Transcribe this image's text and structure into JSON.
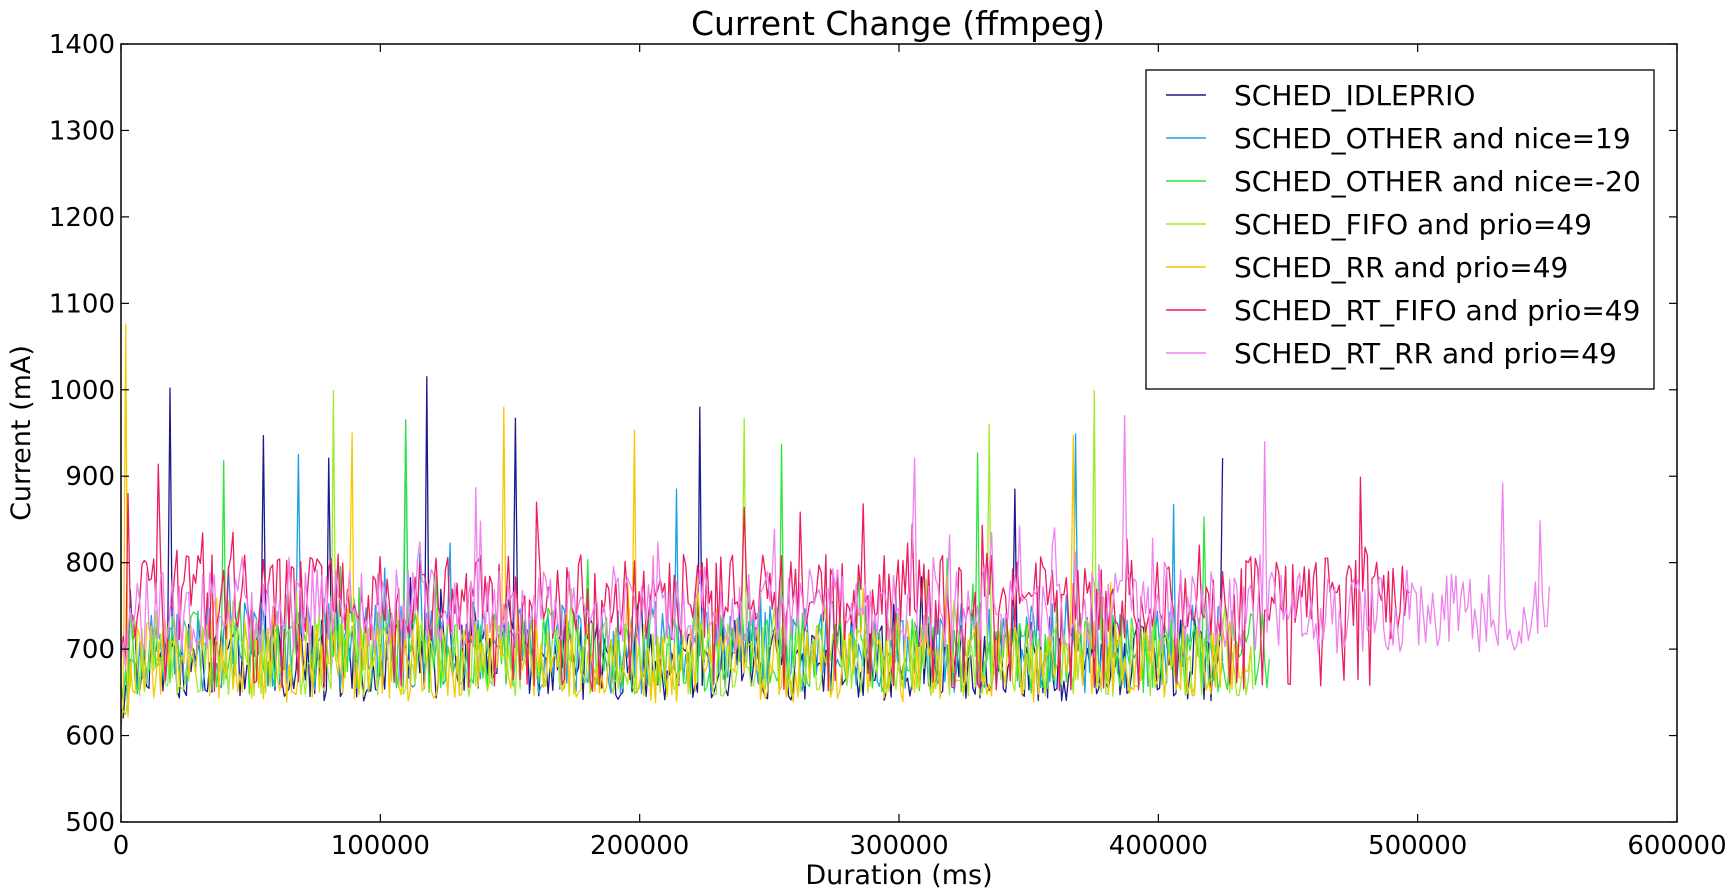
{
  "chart_data": {
    "type": "line",
    "title": "Current Change (ffmpeg)",
    "xlabel": "Duration (ms)",
    "ylabel": "Current (mA)",
    "xlim": [
      0,
      600000
    ],
    "ylim": [
      500,
      1400
    ],
    "xticks": [
      0,
      100000,
      200000,
      300000,
      400000,
      500000,
      600000
    ],
    "xtick_labels": [
      "0",
      "100000",
      "200000",
      "300000",
      "400000",
      "500000",
      "600000"
    ],
    "yticks": [
      500,
      600,
      700,
      800,
      900,
      1000,
      1100,
      1200,
      1300,
      1400
    ],
    "ytick_labels": [
      "500",
      "600",
      "700",
      "800",
      "900",
      "1000",
      "1100",
      "1200",
      "1300",
      "1400"
    ],
    "grid": false,
    "legend_position": "top-right",
    "series": [
      {
        "name": "SCHED_IDLEPRIO",
        "color": "#1a1a8c",
        "x_end": 425000,
        "base": 690,
        "spread": 45,
        "low": 640,
        "peaks": [
          [
            19000,
            1002
          ],
          [
            55000,
            947
          ],
          [
            80000,
            921
          ],
          [
            118000,
            1015
          ],
          [
            152000,
            967
          ],
          [
            223000,
            980
          ],
          [
            345000,
            885
          ],
          [
            425000,
            921
          ]
        ]
      },
      {
        "name": "SCHED_OTHER and nice=19",
        "color": "#1e9fe6",
        "x_end": 425000,
        "base": 705,
        "spread": 50,
        "low": 648,
        "peaks": [
          [
            68000,
            925
          ],
          [
            110000,
            965
          ],
          [
            214000,
            885
          ],
          [
            368000,
            949
          ],
          [
            406000,
            867
          ]
        ]
      },
      {
        "name": "SCHED_OTHER and nice=-20",
        "color": "#2ee63a",
        "x_end": 443000,
        "base": 700,
        "spread": 45,
        "low": 648,
        "peaks": [
          [
            40000,
            918
          ],
          [
            110000,
            963
          ],
          [
            255000,
            937
          ],
          [
            330000,
            927
          ],
          [
            418000,
            853
          ]
        ]
      },
      {
        "name": "SCHED_FIFO and prio=49",
        "color": "#9fea2a",
        "x_end": 437000,
        "base": 690,
        "spread": 45,
        "low": 645,
        "peaks": [
          [
            82000,
            999
          ],
          [
            240000,
            967
          ],
          [
            335000,
            960
          ],
          [
            375000,
            999
          ]
        ]
      },
      {
        "name": "SCHED_RR and prio=49",
        "color": "#f5c800",
        "x_end": 436000,
        "base": 688,
        "spread": 45,
        "low": 638,
        "peaks": [
          [
            2000,
            1076
          ],
          [
            89000,
            950
          ],
          [
            148000,
            980
          ],
          [
            198000,
            953
          ],
          [
            367000,
            947
          ]
        ]
      },
      {
        "name": "SCHED_RT_FIFO and prio=49",
        "color": "#ee1c5e",
        "x_end": 497000,
        "base": 760,
        "spread": 50,
        "low": 650,
        "peaks": [
          [
            3000,
            880
          ],
          [
            14000,
            914
          ],
          [
            160000,
            870
          ],
          [
            286000,
            868
          ],
          [
            478000,
            899
          ]
        ]
      },
      {
        "name": "SCHED_RT_RR and prio=49",
        "color": "#ee82ee",
        "x_end": 551000,
        "base": 748,
        "spread": 45,
        "low": 695,
        "peaks": [
          [
            137000,
            887
          ],
          [
            306000,
            921
          ],
          [
            387000,
            970
          ],
          [
            441000,
            940
          ],
          [
            533000,
            892
          ]
        ]
      }
    ]
  }
}
